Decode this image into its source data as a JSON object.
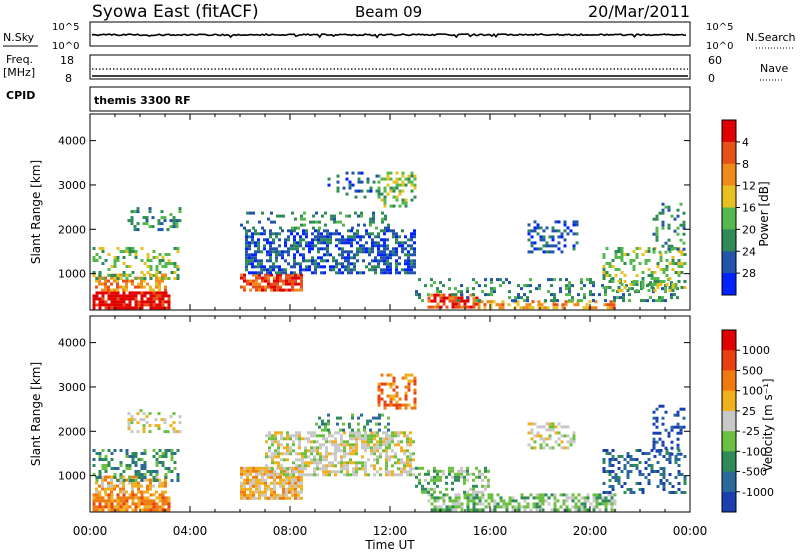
{
  "header": {
    "title": "Syowa East (fitACF)",
    "beam": "Beam 09",
    "date": "20/Mar/2011"
  },
  "labels": {
    "nsky": "N.Sky",
    "nsearch": "N.Search",
    "freq": "Freq.",
    "mhz": "[MHz]",
    "nave": "Nave",
    "cpid": "CPID",
    "cpid_value": "themis 3300 RF",
    "log_hi": "10^5",
    "log_lo": "10^0",
    "freq_hi": "18",
    "freq_lo": "8",
    "nave_hi": "60",
    "nave_lo": "0"
  },
  "chart_data": [
    {
      "type": "heatmap",
      "name": "power-panel",
      "ylabel": "Slant Range [km]",
      "xlabel": "",
      "x_ticks": [
        "00:00",
        "04:00",
        "08:00",
        "12:00",
        "16:00",
        "20:00",
        "00:00"
      ],
      "y_ticks": [
        1000,
        2000,
        3000,
        4000
      ],
      "xlim": [
        0,
        24
      ],
      "ylim": [
        180,
        4600
      ],
      "colorbar": {
        "label": "Power [dB]",
        "ticks": [
          "4",
          "8",
          "12",
          "16",
          "20",
          "24",
          "28"
        ],
        "colors": [
          "#0022ff",
          "#2255aa",
          "#2e8b57",
          "#55b84d",
          "#e8c020",
          "#f08a1a",
          "#e8501a",
          "#e00000"
        ]
      },
      "scatter_regions": [
        {
          "t0": 0.1,
          "t1": 3.2,
          "r0": 200,
          "r1": 600,
          "level": 7,
          "density": 0.85
        },
        {
          "t0": 0.2,
          "t1": 3.0,
          "r0": 600,
          "r1": 1000,
          "level": 5,
          "density": 0.6
        },
        {
          "t0": 0.1,
          "t1": 3.5,
          "r0": 900,
          "r1": 1600,
          "level": 3,
          "density": 0.35
        },
        {
          "t0": 1.5,
          "t1": 3.6,
          "r0": 2000,
          "r1": 2500,
          "level": 2,
          "density": 0.3
        },
        {
          "t0": 6.0,
          "t1": 8.5,
          "r0": 600,
          "r1": 1000,
          "level": 6,
          "density": 0.75
        },
        {
          "t0": 6.2,
          "t1": 13.0,
          "r0": 1000,
          "r1": 2000,
          "level": 1,
          "density": 0.55
        },
        {
          "t0": 6.0,
          "t1": 12.0,
          "r0": 2000,
          "r1": 2400,
          "level": 2,
          "density": 0.25
        },
        {
          "t0": 11.5,
          "t1": 13.0,
          "r0": 2500,
          "r1": 3300,
          "level": 3,
          "density": 0.45
        },
        {
          "t0": 9.5,
          "t1": 11.5,
          "r0": 2700,
          "r1": 3300,
          "level": 1,
          "density": 0.25
        },
        {
          "t0": 13.5,
          "t1": 15.5,
          "r0": 250,
          "r1": 550,
          "level": 6,
          "density": 0.7
        },
        {
          "t0": 15.5,
          "t1": 21.0,
          "r0": 200,
          "r1": 400,
          "level": 5,
          "density": 0.55
        },
        {
          "t0": 13.0,
          "t1": 23.5,
          "r0": 400,
          "r1": 900,
          "level": 2,
          "density": 0.25
        },
        {
          "t0": 17.5,
          "t1": 19.5,
          "r0": 1500,
          "r1": 2200,
          "level": 1,
          "density": 0.4
        },
        {
          "t0": 20.5,
          "t1": 23.8,
          "r0": 600,
          "r1": 1600,
          "level": 3,
          "density": 0.35
        },
        {
          "t0": 22.5,
          "t1": 23.8,
          "r0": 1500,
          "r1": 2600,
          "level": 2,
          "density": 0.3
        }
      ]
    },
    {
      "type": "heatmap",
      "name": "velocity-panel",
      "ylabel": "Slant Range [km]",
      "xlabel": "Time UT",
      "x_ticks": [
        "00:00",
        "04:00",
        "08:00",
        "12:00",
        "16:00",
        "20:00",
        "00:00"
      ],
      "y_ticks": [
        1000,
        2000,
        3000,
        4000
      ],
      "xlim": [
        0,
        24
      ],
      "ylim": [
        180,
        4600
      ],
      "colorbar": {
        "label": "Velocity [m s⁻¹]",
        "ticks": [
          "1000",
          "500",
          "100",
          "25",
          "-25",
          "-100",
          "-500",
          "-1000"
        ],
        "colors": [
          "#1a3fb0",
          "#2a6a9a",
          "#2e8b57",
          "#6cc040",
          "#c8c8c8",
          "#f0b020",
          "#f07a10",
          "#e84010",
          "#e00000"
        ]
      },
      "scatter_regions": [
        {
          "t0": 0.1,
          "t1": 3.2,
          "r0": 200,
          "r1": 600,
          "level": 6,
          "density": 0.8
        },
        {
          "t0": 0.2,
          "t1": 3.0,
          "r0": 600,
          "r1": 1000,
          "level": 5,
          "density": 0.6
        },
        {
          "t0": 0.1,
          "t1": 3.5,
          "r0": 900,
          "r1": 1600,
          "level": 2,
          "density": 0.35
        },
        {
          "t0": 1.5,
          "t1": 3.6,
          "r0": 2000,
          "r1": 2500,
          "level": 4,
          "density": 0.3
        },
        {
          "t0": 6.0,
          "t1": 8.5,
          "r0": 500,
          "r1": 1200,
          "level": 5,
          "density": 0.8
        },
        {
          "t0": 7.0,
          "t1": 13.0,
          "r0": 1000,
          "r1": 2000,
          "level": 4,
          "density": 0.6
        },
        {
          "t0": 9.0,
          "t1": 12.0,
          "r0": 2000,
          "r1": 2400,
          "level": 2,
          "density": 0.35
        },
        {
          "t0": 11.5,
          "t1": 13.0,
          "r0": 2500,
          "r1": 3300,
          "level": 6,
          "density": 0.45
        },
        {
          "t0": 13.5,
          "t1": 21.0,
          "r0": 200,
          "r1": 600,
          "level": 3,
          "density": 0.6
        },
        {
          "t0": 13.0,
          "t1": 16.0,
          "r0": 600,
          "r1": 1200,
          "level": 3,
          "density": 0.45
        },
        {
          "t0": 17.5,
          "t1": 19.5,
          "r0": 1600,
          "r1": 2200,
          "level": 4,
          "density": 0.4
        },
        {
          "t0": 20.5,
          "t1": 23.8,
          "r0": 600,
          "r1": 1600,
          "level": 1,
          "density": 0.35
        },
        {
          "t0": 22.5,
          "t1": 23.8,
          "r0": 1500,
          "r1": 2600,
          "level": 0,
          "density": 0.3
        }
      ]
    }
  ]
}
